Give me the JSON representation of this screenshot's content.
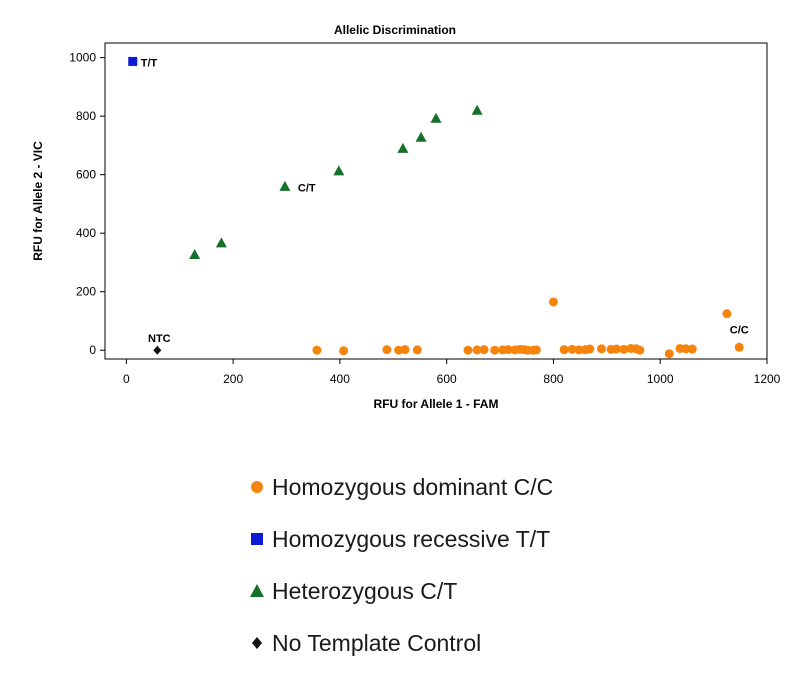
{
  "chart_data": {
    "type": "scatter",
    "title": "Allelic Discrimination",
    "xlabel": "RFU for Allele 1 - FAM",
    "ylabel": "RFU for Allele 2 - VIC",
    "xlim": [
      -40,
      1200
    ],
    "ylim": [
      -30,
      1050
    ],
    "xticks": [
      0,
      200,
      400,
      600,
      800,
      1000,
      1200
    ],
    "yticks": [
      0,
      200,
      400,
      600,
      800,
      1000
    ],
    "grid": false,
    "legend_position": "bottom",
    "series": [
      {
        "name": "Homozygous dominant C/C",
        "marker": "circle",
        "color": "#f5840c",
        "points": [
          [
            357,
            0
          ],
          [
            407,
            -2
          ],
          [
            488,
            2
          ],
          [
            510,
            0
          ],
          [
            522,
            2
          ],
          [
            545,
            1
          ],
          [
            640,
            0
          ],
          [
            657,
            1
          ],
          [
            670,
            2
          ],
          [
            690,
            0
          ],
          [
            705,
            1
          ],
          [
            715,
            2
          ],
          [
            728,
            1
          ],
          [
            738,
            3
          ],
          [
            745,
            2
          ],
          [
            752,
            0
          ],
          [
            762,
            0
          ],
          [
            768,
            1
          ],
          [
            800,
            165
          ],
          [
            820,
            2
          ],
          [
            835,
            3
          ],
          [
            848,
            1
          ],
          [
            860,
            2
          ],
          [
            868,
            4
          ],
          [
            890,
            5
          ],
          [
            908,
            3
          ],
          [
            918,
            4
          ],
          [
            932,
            3
          ],
          [
            945,
            6
          ],
          [
            955,
            5
          ],
          [
            962,
            0
          ],
          [
            1017,
            -12
          ],
          [
            1037,
            6
          ],
          [
            1048,
            5
          ],
          [
            1060,
            4
          ],
          [
            1125,
            125
          ],
          [
            1148,
            10
          ]
        ]
      },
      {
        "name": "Homozygous recessive T/T",
        "marker": "square",
        "color": "#0a1ad6",
        "points": [
          [
            12,
            987
          ]
        ]
      },
      {
        "name": "Heterozygous C/T",
        "marker": "triangle",
        "color": "#15702a",
        "points": [
          [
            128,
            327
          ],
          [
            178,
            367
          ],
          [
            297,
            560
          ],
          [
            398,
            613
          ],
          [
            518,
            690
          ],
          [
            552,
            728
          ],
          [
            580,
            793
          ],
          [
            657,
            820
          ]
        ]
      },
      {
        "name": "No Template Control",
        "marker": "diamond",
        "color": "#111111",
        "points": [
          [
            58,
            0
          ]
        ]
      }
    ],
    "annotations": [
      {
        "text": "T/T",
        "x": 12,
        "y": 987
      },
      {
        "text": "C/T",
        "x": 297,
        "y": 560
      },
      {
        "text": "NTC",
        "x": 58,
        "y": 0
      },
      {
        "text": "C/C",
        "x": 1148,
        "y": 10
      }
    ]
  }
}
